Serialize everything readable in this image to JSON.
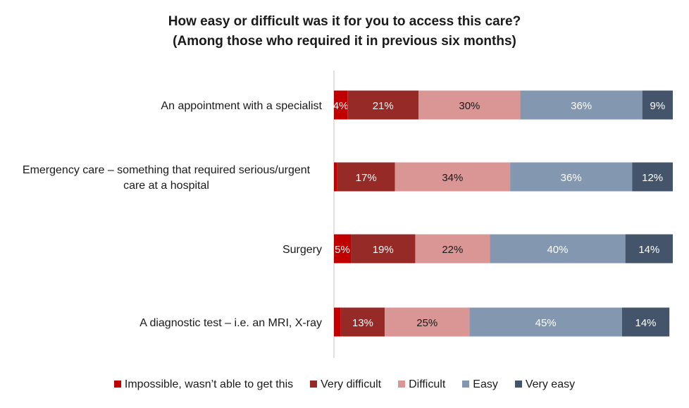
{
  "chart_data": {
    "type": "bar",
    "orientation": "horizontal",
    "stacked": true,
    "title": "How easy or difficult was it for you to access this care?",
    "subtitle": "(Among those who required it in previous six months)",
    "categories": [
      "An appointment with a specialist",
      "Emergency care – something that required serious/urgent care at a hospital",
      "Surgery",
      "A diagnostic test – i.e. an MRI, X-ray"
    ],
    "category_lines": [
      [
        "An appointment with a specialist"
      ],
      [
        "Emergency care – something that required serious/urgent",
        "care at a hospital"
      ],
      [
        "Surgery"
      ],
      [
        "A diagnostic test – i.e. an MRI, X-ray"
      ]
    ],
    "series": [
      {
        "name": "Impossible, wasn’t able to get this",
        "color": "#c00000",
        "values": [
          4,
          1,
          5,
          2
        ],
        "labels": [
          "4%",
          "",
          "5%",
          ""
        ]
      },
      {
        "name": "Very difficult",
        "color": "#952a26",
        "values": [
          21,
          17,
          19,
          13
        ],
        "labels": [
          "21%",
          "17%",
          "19%",
          "13%"
        ]
      },
      {
        "name": "Difficult",
        "color": "#da9694",
        "values": [
          30,
          34,
          22,
          25
        ],
        "labels": [
          "30%",
          "34%",
          "22%",
          "25%"
        ]
      },
      {
        "name": "Easy",
        "color": "#8497b0",
        "values": [
          36,
          36,
          40,
          45
        ],
        "labels": [
          "36%",
          "36%",
          "40%",
          "45%"
        ]
      },
      {
        "name": "Very easy",
        "color": "#44546a",
        "values": [
          9,
          12,
          14,
          14
        ],
        "labels": [
          "9%",
          "12%",
          "14%",
          "14%"
        ]
      }
    ],
    "xlim": [
      0,
      100
    ],
    "grid": false,
    "legend_position": "bottom"
  }
}
